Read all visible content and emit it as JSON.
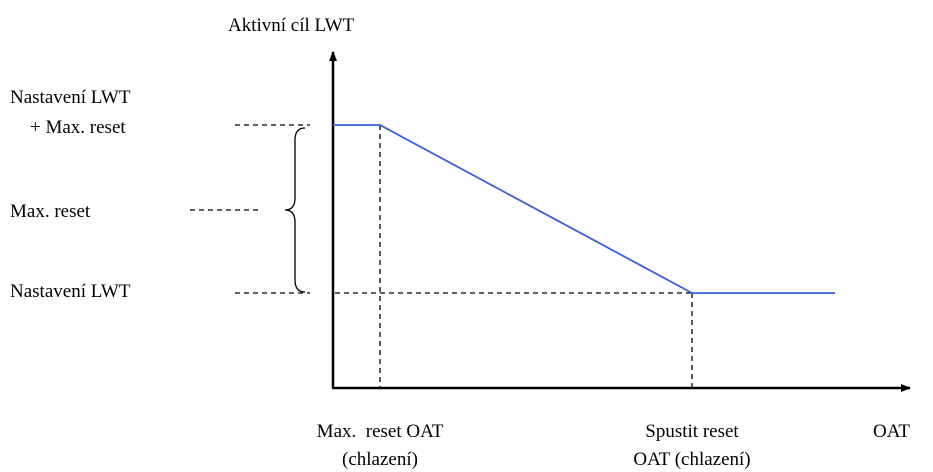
{
  "y_axis_title": "Aktivní cíl LWT",
  "y_labels": [
    [
      "Nastavení LWT",
      "+ Max. reset"
    ],
    [
      "Max. reset"
    ],
    [
      "Nastavení LWT"
    ]
  ],
  "x_labels": [
    [
      "Max.  reset OAT",
      "(chlazení)"
    ],
    [
      "Spustit reset",
      "OAT (chlazení)"
    ]
  ],
  "x_axis_title": "OAT"
}
